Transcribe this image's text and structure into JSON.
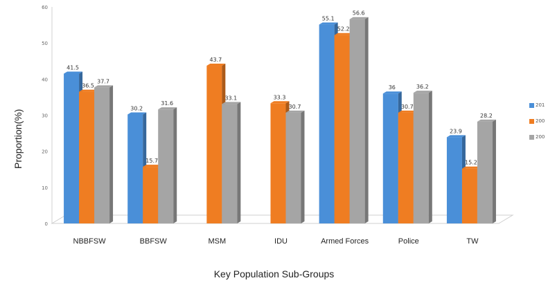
{
  "chart_data": {
    "type": "bar",
    "categories": [
      "NBBFSW",
      "BBFSW",
      "MSM",
      "IDU",
      "Armed Forces",
      "Police",
      "TW"
    ],
    "series": [
      {
        "name": "201",
        "color": "#4a8fd8",
        "values": [
          41.5,
          30.2,
          null,
          null,
          55.1,
          36,
          23.9
        ]
      },
      {
        "name": "200",
        "color": "#ef7d22",
        "values": [
          36.5,
          15.7,
          43.7,
          33.3,
          52.2,
          30.7,
          15.2
        ]
      },
      {
        "name": "200",
        "color": "#a5a5a5",
        "values": [
          37.7,
          31.6,
          33.1,
          30.7,
          56.6,
          36.2,
          28.2
        ]
      }
    ],
    "data_labels": [
      [
        "41.5",
        "36.5",
        "37.7"
      ],
      [
        "30.2",
        "15.7",
        "31.6"
      ],
      [
        "",
        "43.7",
        "33.1"
      ],
      [
        "",
        "33.3",
        "30.7"
      ],
      [
        "55.1",
        "52.2",
        "56.6"
      ],
      [
        "36",
        "30.7",
        "36.2"
      ],
      [
        "23.9",
        "15.2",
        "28.2"
      ]
    ],
    "xlabel": "Key Population Sub-Groups",
    "ylabel": "Proportion(%)",
    "ylim": [
      0,
      60
    ],
    "yticks": [
      "0",
      "10",
      "20",
      "30",
      "40",
      "50",
      "60"
    ],
    "legend_position": "right",
    "grid": false
  }
}
